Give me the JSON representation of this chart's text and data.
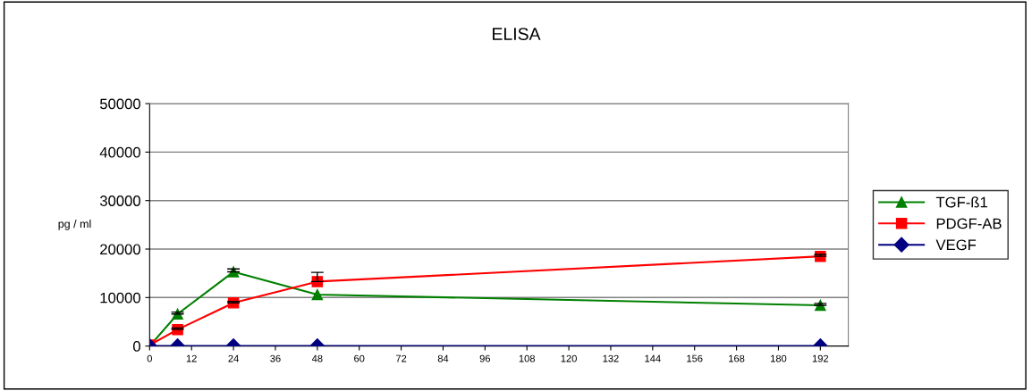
{
  "chart_data": {
    "type": "line",
    "title": "ELISA",
    "ylabel": "pg / ml",
    "xlim": [
      0,
      200
    ],
    "xticks": [
      0,
      12,
      24,
      36,
      48,
      60,
      72,
      84,
      96,
      108,
      120,
      132,
      144,
      156,
      168,
      180,
      192
    ],
    "ylim": [
      0,
      50000
    ],
    "yticks": [
      0,
      10000,
      20000,
      30000,
      40000,
      50000
    ],
    "grid": "y",
    "legend": "right",
    "line_style": "solid",
    "series": [
      {
        "name": "TGF-ß1",
        "color": "#008000",
        "marker": "triangle",
        "x": [
          0,
          8,
          24,
          48,
          192
        ],
        "values": [
          0,
          6600,
          15300,
          10600,
          8400
        ],
        "errors": [
          null,
          [
            6600,
            7000
          ],
          [
            15300,
            15900
          ],
          null,
          [
            8400,
            8800
          ]
        ]
      },
      {
        "name": "PDGF-AB",
        "color": "#ff0000",
        "marker": "square",
        "x": [
          0,
          8,
          24,
          48,
          192
        ],
        "values": [
          200,
          3400,
          8900,
          13300,
          18500
        ],
        "errors": [
          null,
          [
            3400,
            3700
          ],
          [
            8900,
            9200
          ],
          [
            13300,
            15200
          ],
          [
            18500,
            18900
          ]
        ]
      },
      {
        "name": "VEGF",
        "color": "#000080",
        "marker": "diamond",
        "x": [
          0,
          8,
          24,
          48,
          192
        ],
        "values": [
          0,
          0,
          0,
          0,
          0
        ]
      }
    ]
  }
}
